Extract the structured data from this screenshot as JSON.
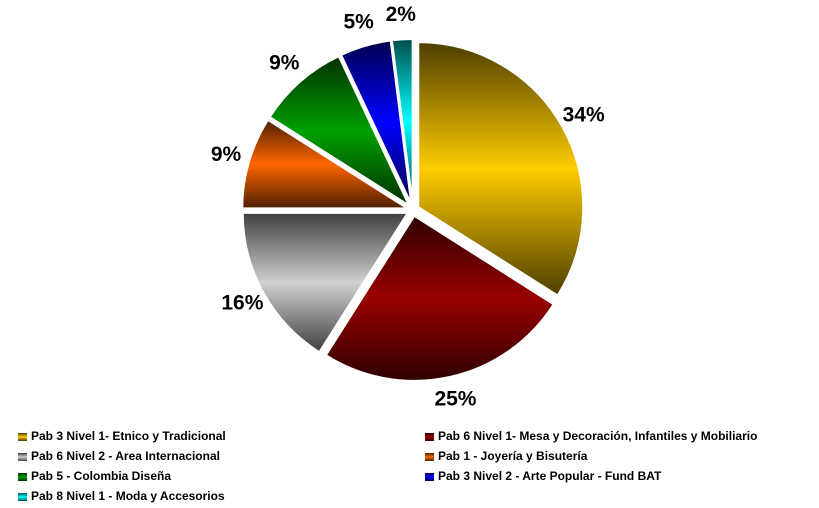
{
  "chart_data": {
    "type": "pie",
    "categories": [
      "Pab 3 Nivel 1- Etnico y Tradicional",
      "Pab 6 Nivel 1- Mesa y Decoración, Infantiles y Mobiliario",
      "Pab 6 Nivel 2 - Area Internacional",
      "Pab 1 - Joyería y Bisutería",
      "Pab 5 - Colombia Diseña",
      "Pab 3 Nivel 2 - Arte Popular - Fund BAT",
      "Pab 8 Nivel 1 - Moda y Accesorios"
    ],
    "values": [
      34,
      25,
      16,
      9,
      9,
      5,
      2
    ],
    "value_labels": [
      "34%",
      "25%",
      "16%",
      "9%",
      "9%",
      "5%",
      "2%"
    ],
    "colors": [
      "#ffcc00",
      "#990000",
      "#d0d0d0",
      "#ff6600",
      "#00a000",
      "#0000ff",
      "#00ffff"
    ],
    "legend": "bottom"
  }
}
